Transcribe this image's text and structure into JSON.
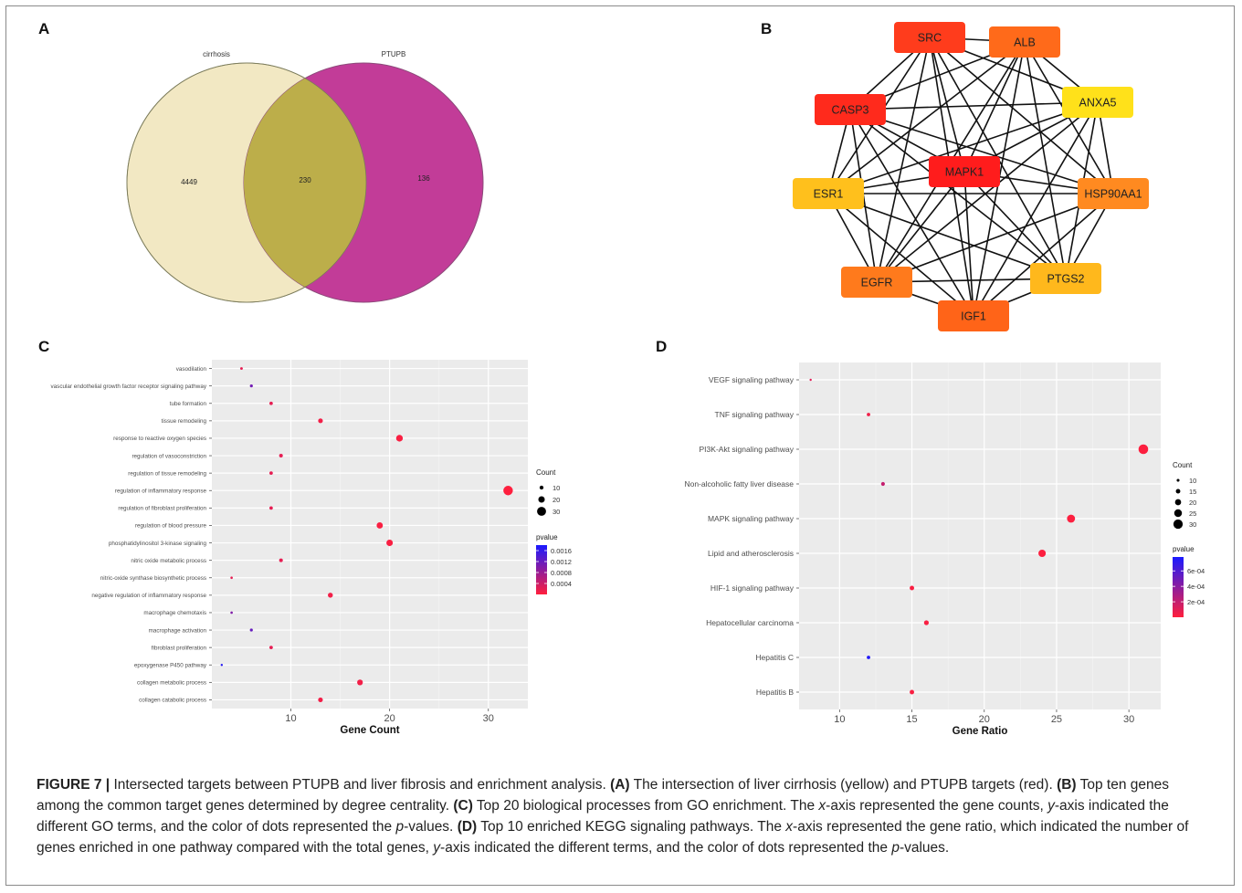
{
  "panels": {
    "A": {
      "letter": "A",
      "venn": {
        "left_label": "cirrhosis",
        "right_label": "PTUPB",
        "left_only": "4449",
        "intersection": "230",
        "right_only": "136",
        "left_color": "#f2e8c3",
        "right_color": "#c23c98",
        "overlap_color": "#bcae4a"
      }
    },
    "B": {
      "letter": "B",
      "network": {
        "nodes": [
          {
            "id": "SRC",
            "color": "#ff3c1c"
          },
          {
            "id": "ALB",
            "color": "#ff6a1a"
          },
          {
            "id": "ANXA5",
            "color": "#ffe11a"
          },
          {
            "id": "HSP90AA1",
            "color": "#ff8a20"
          },
          {
            "id": "PTGS2",
            "color": "#ffb81c"
          },
          {
            "id": "IGF1",
            "color": "#ff6418"
          },
          {
            "id": "EGFR",
            "color": "#ff7a1c"
          },
          {
            "id": "ESR1",
            "color": "#ffc01c"
          },
          {
            "id": "CASP3",
            "color": "#ff2a1c"
          },
          {
            "id": "MAPK1",
            "color": "#ff1c1c"
          }
        ]
      }
    },
    "C": {
      "letter": "C",
      "chart_data": {
        "type": "scatter",
        "xlabel": "Gene Count",
        "xticks": [
          10,
          20,
          30
        ],
        "xlim": [
          2,
          34
        ],
        "categories": [
          "vasodilation",
          "vascular endothelial growth factor receptor signaling pathway",
          "tube formation",
          "tissue remodeling",
          "response to reactive oxygen species",
          "regulation of vasoconstriction",
          "regulation of tissue remodeling",
          "regulation of inflammatory response",
          "regulation of fibroblast proliferation",
          "regulation of blood pressure",
          "phosphatidylinositol 3-kinase signaling",
          "nitric oxide metabolic process",
          "nitric-oxide synthase biosynthetic process",
          "negative regulation of inflammatory response",
          "macrophage chemotaxis",
          "macrophage activation",
          "fibroblast proliferation",
          "epoxygenase P450 pathway",
          "collagen metabolic process",
          "collagen catabolic process"
        ],
        "values": [
          5,
          6,
          8,
          13,
          21,
          9,
          8,
          32,
          8,
          19,
          20,
          9,
          4,
          14,
          4,
          6,
          8,
          3,
          17,
          13
        ],
        "pvalues": [
          0.0002,
          0.0011,
          0.0002,
          0.0001,
          5e-05,
          0.0002,
          0.0002,
          1e-05,
          0.0002,
          5e-05,
          5e-05,
          0.0002,
          0.0002,
          0.0001,
          0.001,
          0.0012,
          0.0002,
          0.0017,
          0.0001,
          0.0001
        ],
        "size_legend": {
          "title": "Count",
          "values": [
            10,
            20,
            30
          ],
          "min": 3,
          "max": 32
        },
        "color_legend": {
          "title": "pvalue",
          "labels": [
            "0.0016",
            "0.0012",
            "0.0008",
            "0.0004"
          ],
          "ticks": [
            0.0016,
            0.0012,
            0.0008,
            0.0004
          ],
          "range": [
            0.0,
            0.0018
          ],
          "low_color": "#ff1f3d",
          "high_color": "#1a1aff"
        }
      }
    },
    "D": {
      "letter": "D",
      "chart_data": {
        "type": "scatter",
        "xlabel": "Gene Ratio",
        "xticks": [
          10,
          15,
          20,
          25,
          30
        ],
        "xlim": [
          7.2,
          32.2
        ],
        "categories": [
          "VEGF signaling pathway",
          "TNF signaling pathway",
          "PI3K-Akt signaling pathway",
          "Non-alcoholic fatty liver disease",
          "MAPK signaling pathway",
          "Lipid and atherosclerosis",
          "HIF-1 signaling pathway",
          "Hepatocellular carcinoma",
          "Hepatitis C",
          "Hepatitis B"
        ],
        "values": [
          8,
          12,
          31,
          13,
          26,
          24,
          15,
          16,
          12,
          15
        ],
        "pvalues": [
          0.0001,
          5e-05,
          1e-05,
          0.0002,
          1e-05,
          1e-05,
          2e-05,
          2e-05,
          0.00075,
          2e-05
        ],
        "size_legend": {
          "title": "Count",
          "values": [
            10,
            15,
            20,
            25,
            30
          ],
          "min": 8,
          "max": 31
        },
        "color_legend": {
          "title": "pvalue",
          "labels": [
            "6e-04",
            "4e-04",
            "2e-04"
          ],
          "ticks": [
            0.0006,
            0.0004,
            0.0002
          ],
          "range": [
            0.0,
            0.00078
          ],
          "low_color": "#ff1f3d",
          "high_color": "#1a1aff"
        }
      }
    }
  },
  "caption": {
    "fig_label": "FIGURE 7 |",
    "t1": " Intersected targets between PTUPB and liver fibrosis and enrichment analysis. ",
    "a_ref": "(A)",
    "t2": " The intersection of liver cirrhosis (yellow) and PTUPB targets (red). ",
    "b_ref": "(B)",
    "t3": " Top ten genes among the common target genes determined by degree centrality. ",
    "c_ref": "(C)",
    "t4": " Top 20 biological processes from GO enrichment. The ",
    "x1": "x",
    "t5": "-axis represented the gene counts, ",
    "y1": "y",
    "t6": "-axis indicated the different GO terms, and the color of dots represented the ",
    "p1": "p",
    "t7": "-values. ",
    "d_ref": "(D)",
    "t8": " Top 10 enriched KEGG signaling pathways. The ",
    "x2": "x",
    "t9": "-axis represented the gene ratio, which indicated the number of genes enriched in one pathway compared with the total genes, ",
    "y2": "y",
    "t10": "-axis indicated the different terms, and the color of dots represented the ",
    "p2": "p",
    "t11": "-values."
  }
}
